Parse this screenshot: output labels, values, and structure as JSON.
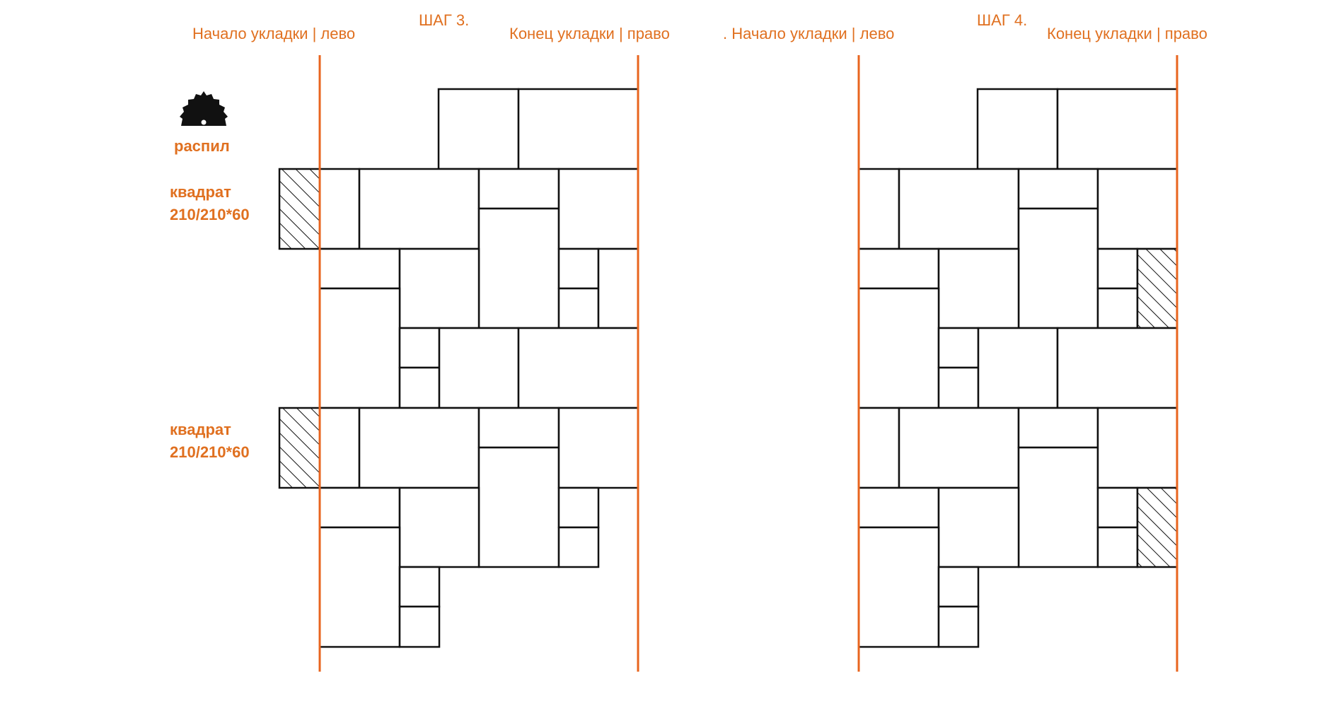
{
  "steps": [
    {
      "step_label": "ШАГ 3.",
      "start_label": "Начало укладки | лево",
      "end_label": "Конец укладки  |  право"
    },
    {
      "step_label": "ШАГ 4.",
      "start_label": ". Начало укладки | лево",
      "end_label": "Конец укладки  |  право"
    }
  ],
  "legend": {
    "saw_label": "распил",
    "square_label_1_line1": "квадрат",
    "square_label_1_line2": "210/210*60",
    "square_label_2_line1": "квадрат",
    "square_label_2_line2": "210/210*60"
  },
  "colors": {
    "accent": "#e8641e",
    "tile_stroke": "#111111",
    "background": "#ffffff"
  },
  "icons": {
    "saw": "circular-saw-blade-icon"
  }
}
